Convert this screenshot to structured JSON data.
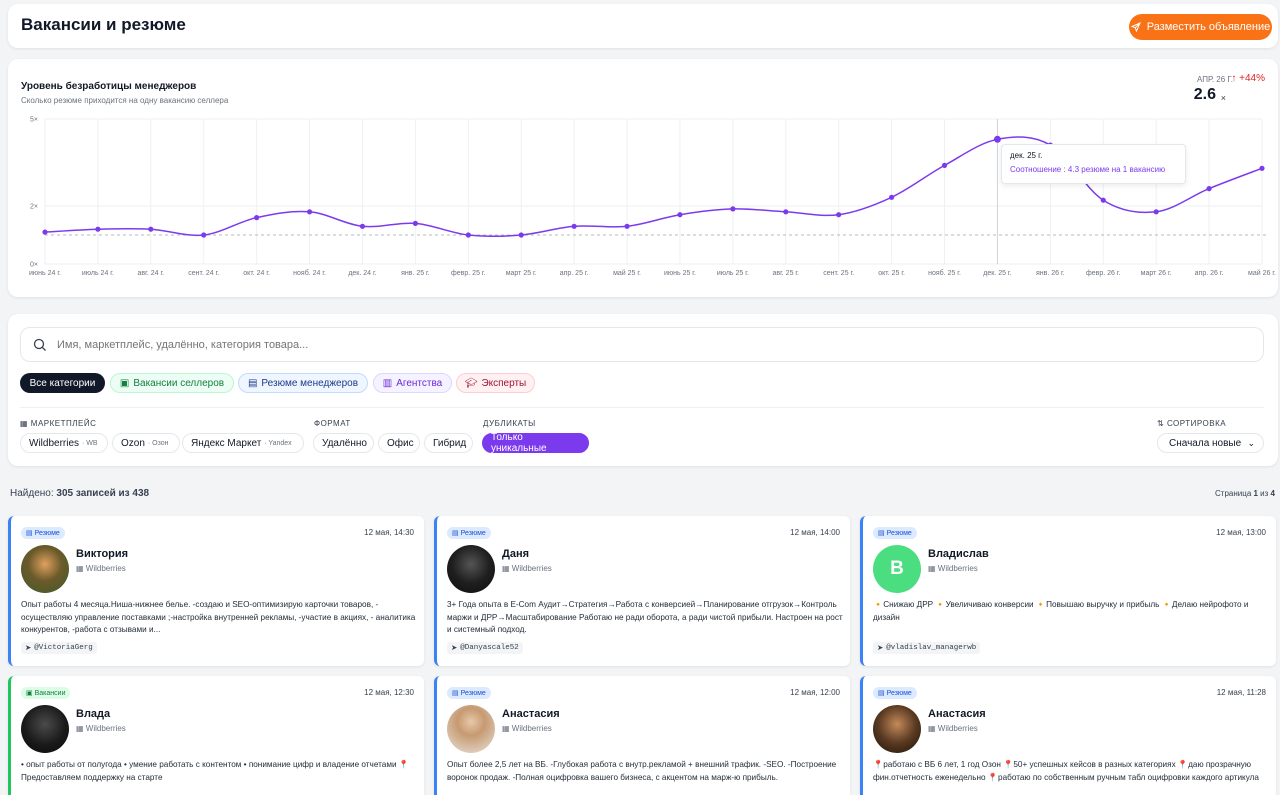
{
  "header": {
    "title": "Вакансии и резюме",
    "post_button": "Разместить объявление"
  },
  "chart": {
    "title": "Уровень безработицы менеджеров",
    "subtitle": "Сколько резюме приходится на одну вакансию селлера",
    "current_date": "АПР. 26 Г.",
    "change": "+44%",
    "value": "2.6",
    "unit": "×",
    "tooltip": {
      "date": "дек. 25 г.",
      "text": "Соотношение : 4.3 резюме на 1 вакансию"
    }
  },
  "chart_data": {
    "type": "line",
    "title": "Уровень безработицы менеджеров",
    "subtitle": "Сколько резюме приходится на одну вакансию селлера",
    "x": [
      "июнь 24 г.",
      "июль 24 г.",
      "авг. 24 г.",
      "сент. 24 г.",
      "окт. 24 г.",
      "нояб. 24 г.",
      "дек. 24 г.",
      "янв. 25 г.",
      "февр. 25 г.",
      "март 25 г.",
      "апр. 25 г.",
      "май 25 г.",
      "июнь 25 г.",
      "июль 25 г.",
      "авг. 25 г.",
      "сент. 25 г.",
      "окт. 25 г.",
      "нояб. 25 г.",
      "дек. 25 г.",
      "янв. 26 г.",
      "февр. 26 г.",
      "март 26 г.",
      "апр. 26 г.",
      "май 26 г."
    ],
    "y_ticks": [
      "0×",
      "2×",
      "5×"
    ],
    "ylim": [
      0,
      5
    ],
    "series": [
      {
        "values": [
          1.1,
          1.2,
          1.2,
          1.0,
          1.6,
          1.8,
          1.3,
          1.4,
          1.0,
          1.0,
          1.3,
          1.3,
          1.7,
          1.9,
          1.8,
          1.7,
          2.3,
          3.4,
          4.3,
          4.1,
          2.2,
          1.8,
          2.6,
          3.3
        ]
      }
    ],
    "baseline": 1.0,
    "grid": true
  },
  "search": {
    "placeholder": "Имя, маркетплейс, удалённо, категория товара..."
  },
  "categories": [
    "Все категории",
    "Вакансии селлеров",
    "Резюме менеджеров",
    "Агентства",
    "Эксперты"
  ],
  "filters": {
    "marketplace_label": "МАРКЕТПЛЕЙС",
    "marketplaces": [
      {
        "name": "Wildberries",
        "sub": "· WB"
      },
      {
        "name": "Ozon",
        "sub": "· Озон"
      },
      {
        "name": "Яндекс Маркет",
        "sub": "· Yandex"
      }
    ],
    "format_label": "ФОРМАТ",
    "formats": [
      "Удалённо",
      "Офис",
      "Гибрид"
    ],
    "duplicates_label": "ДУБЛИКАТЫ",
    "duplicates_option": "Только уникальные",
    "sort_label": "СОРТИРОВКА",
    "sort_value": "Сначала новые"
  },
  "results": {
    "found_prefix": "Найдено: ",
    "found_count": "305 записей из 438",
    "page_prefix": "Страница ",
    "page_current": "1",
    "page_of": " из ",
    "page_total": "4"
  },
  "cards": [
    {
      "type": "Резюме",
      "date": "12 мая, 14:30",
      "name": "Виктория",
      "marketplace": "Wildberries",
      "text": "Опыт работы 4 месяца.Ниша-нижнее белье. -создаю и SEO-оптимизирую карточки товаров, - осуществляю управление поставками ;-настройка внутренней рекламы, -участие в акциях, - аналитика конкурентов, -работа с отзывами и...",
      "handle": "@VictoriaGerg"
    },
    {
      "type": "Резюме",
      "date": "12 мая, 14:00",
      "name": "Даня",
      "marketplace": "Wildberries",
      "text": "3+ Года опыта в E-Com Аудит→Стратегия→Работа с конверсией→Планирование отгрузок→Контроль маржи и ДРР→Масштабирование Работаю не ради оборота, а ради чистой прибыли. Настроен на рост и системный подход.",
      "handle": "@Danyascale52"
    },
    {
      "type": "Резюме",
      "date": "12 мая, 13:00",
      "name": "Владислав",
      "marketplace": "Wildberries",
      "initial": "В",
      "text": "🔸Снижаю ДРР 🔸Увеличиваю конверсии 🔸Повышаю выручку и прибыль 🔸Делаю нейрофото и дизайн",
      "handle": "@vladislav_managerwb"
    },
    {
      "type": "Вакансии",
      "date": "12 мая, 12:30",
      "name": "Влада",
      "marketplace": "Wildberries",
      "text": "• опыт работы от полугода • умение работать с контентом • понимание цифр и владение отчетами 📍 Предоставляем поддержку на старте",
      "handle": ""
    },
    {
      "type": "Резюме",
      "date": "12 мая, 12:00",
      "name": "Анастасия",
      "marketplace": "Wildberries",
      "text": "Опыт более 2,5 лет на ВБ. -Глубокая работа с внутр.рекламой + внешний трафик. -SEO. -Построение воронок продаж. -Полная оцифровка вашего бизнеса, с акцентом на марж-ю прибыль.",
      "handle": ""
    },
    {
      "type": "Резюме",
      "date": "12 мая, 11:28",
      "name": "Анастасия",
      "marketplace": "Wildberries",
      "text": "📍работаю с ВБ 6 лет, 1 год Озон 📍50+ успешных кейсов в разных категориях 📍даю прозрачную фин.отчетность еженедельно 📍работаю по собственным ручным табл оцифровки каждого артикула",
      "handle": ""
    }
  ],
  "colors": {
    "accent": "#f97316",
    "line": "#7c3aed",
    "resume": "#3b82f6",
    "vacancy": "#22c55e"
  }
}
